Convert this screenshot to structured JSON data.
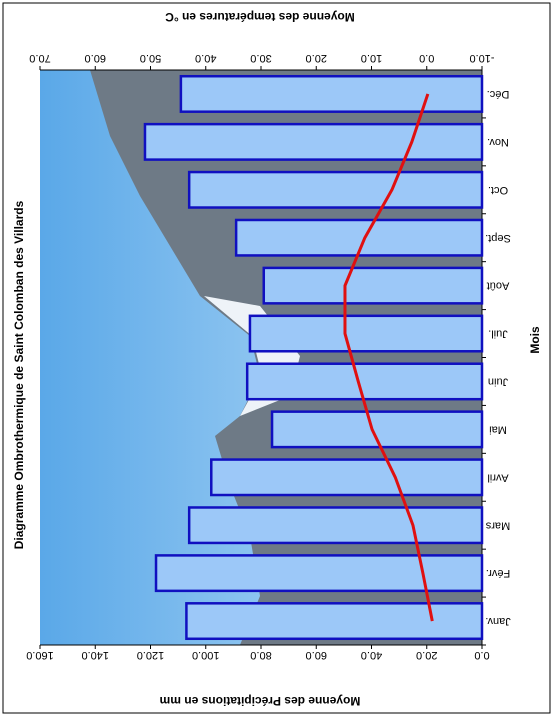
{
  "chart_data": {
    "type": "bar-line",
    "title": "Diagramme Ombrothermique de Saint Colomban des Villards",
    "x_label": "Mois",
    "y_label": "Moyenne des Précipitations en mm",
    "y2_label": "Moyenne des températures en °C",
    "categories": [
      "Janv.",
      "Févr.",
      "Mars",
      "Avril",
      "Mai",
      "Juin",
      "Juil.",
      "Août",
      "Sept.",
      "Oct.",
      "Nov.",
      "Déc."
    ],
    "series": [
      {
        "name": "Précipitations",
        "type": "bar",
        "color": "#9cc8f8",
        "values": [
          107,
          118,
          106,
          98,
          76,
          85,
          84,
          79,
          89,
          106,
          122,
          109
        ]
      },
      {
        "name": "Températures",
        "type": "line",
        "axis": "y2",
        "color": "#e01010",
        "values": [
          -1,
          0.7,
          2.5,
          5.7,
          9.9,
          12.4,
          14.8,
          14.8,
          11.2,
          6.3,
          2.7,
          -0.2
        ]
      }
    ],
    "ylim": [
      0,
      160
    ],
    "yticks": [
      {
        "value": 0,
        "label": "0.0"
      },
      {
        "value": 20,
        "label": "20.0"
      },
      {
        "value": 40,
        "label": "40.0"
      },
      {
        "value": 60,
        "label": "60.0"
      },
      {
        "value": 80,
        "label": "80.0"
      },
      {
        "value": 100,
        "label": "100.0"
      },
      {
        "value": 120,
        "label": "120.0"
      },
      {
        "value": 140,
        "label": "140.0"
      },
      {
        "value": 160,
        "label": "160.0"
      }
    ],
    "y2lim": [
      -10,
      70
    ],
    "y2ticks": [
      {
        "value": -10,
        "label": "-10.0"
      },
      {
        "value": 0,
        "label": "0.0"
      },
      {
        "value": 10,
        "label": "10.0"
      },
      {
        "value": 20,
        "label": "20.0"
      },
      {
        "value": 30,
        "label": "30.0"
      },
      {
        "value": 40,
        "label": "40.0"
      },
      {
        "value": 50,
        "label": "50.0"
      },
      {
        "value": 60,
        "label": "60.0"
      },
      {
        "value": 70,
        "label": "70.0"
      }
    ]
  }
}
